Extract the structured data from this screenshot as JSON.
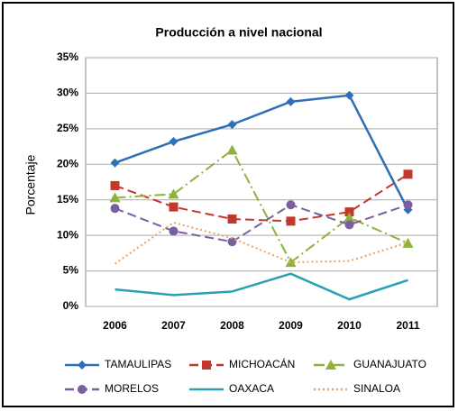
{
  "chart_data": {
    "type": "line",
    "title": "Producción a nivel nacional",
    "y_label": "Porcentaje",
    "categories": [
      "2006",
      "2007",
      "2008",
      "2009",
      "2010",
      "2011"
    ],
    "ylim": [
      0,
      35
    ],
    "yticks": [
      {
        "value": 0,
        "label": "0%"
      },
      {
        "value": 5,
        "label": "5%"
      },
      {
        "value": 10,
        "label": "10%"
      },
      {
        "value": 15,
        "label": "15%"
      },
      {
        "value": 20,
        "label": "20%"
      },
      {
        "value": 25,
        "label": "25%"
      },
      {
        "value": 30,
        "label": "30%"
      },
      {
        "value": 35,
        "label": "35%"
      }
    ],
    "grid": true,
    "legend": "bottom",
    "series": [
      {
        "name": "TAMAULIPAS",
        "color": "#2e6fb7",
        "marker": "diamond",
        "dash": "solid",
        "values": [
          20.2,
          23.2,
          25.6,
          28.8,
          29.7,
          13.6
        ]
      },
      {
        "name": "MICHOACÁN",
        "color": "#c0392b",
        "marker": "square",
        "dash": "dashed",
        "values": [
          17.0,
          14.0,
          12.3,
          12.0,
          13.3,
          18.6
        ]
      },
      {
        "name": "GUANAJUATO",
        "color": "#8db33b",
        "marker": "triangle",
        "dash": "dashdot",
        "values": [
          15.3,
          15.8,
          22.0,
          6.2,
          12.5,
          8.9
        ]
      },
      {
        "name": "MORELOS",
        "color": "#7a5fa0",
        "marker": "circle",
        "dash": "dashed",
        "values": [
          13.8,
          10.6,
          9.1,
          14.3,
          11.5,
          14.3
        ]
      },
      {
        "name": "OAXACA",
        "color": "#2aa0b5",
        "marker": "none",
        "dash": "solid",
        "values": [
          2.4,
          1.6,
          2.1,
          4.6,
          1.0,
          3.7
        ]
      },
      {
        "name": "SINALOA",
        "color": "#f0a060",
        "marker": "none",
        "dash": "dotted",
        "values": [
          6.0,
          11.8,
          9.6,
          6.2,
          6.4,
          9.0
        ]
      }
    ]
  }
}
